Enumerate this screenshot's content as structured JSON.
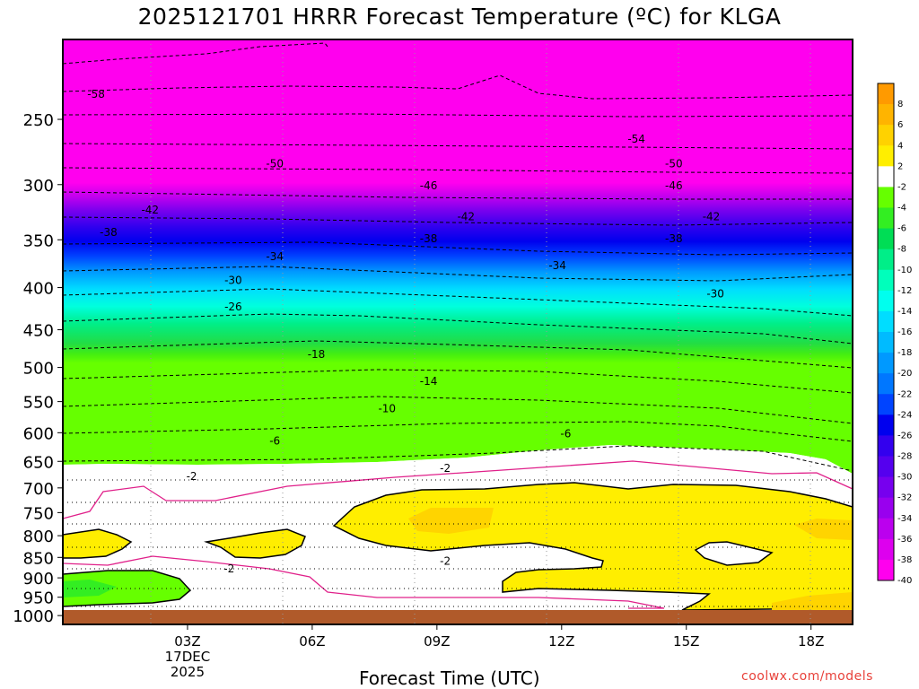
{
  "chart_data": {
    "type": "heatmap",
    "title": "2025121701 HRRR Forecast Temperature (ºC) for KLGA",
    "xlabel": "Forecast Time (UTC)",
    "ylabel": "",
    "x_ticks": [
      "03Z",
      "06Z",
      "09Z",
      "12Z",
      "15Z",
      "18Z"
    ],
    "x_tick_hours": [
      3,
      6,
      9,
      12,
      15,
      18
    ],
    "x_range_hours": [
      0,
      19
    ],
    "date_label": [
      "17DEC",
      "2025"
    ],
    "y_ticks": [
      250,
      300,
      350,
      400,
      450,
      500,
      550,
      600,
      650,
      700,
      750,
      800,
      850,
      900,
      950,
      1000
    ],
    "y_range_hPa": [
      1025,
      200
    ],
    "y_scale": "log-pressure",
    "grid": true,
    "colorbar_labels": [
      "8",
      "6",
      "4",
      "2",
      "-2",
      "-4",
      "-6",
      "-8",
      "-10",
      "-12",
      "-14",
      "-16",
      "-18",
      "-20",
      "-22",
      "-24",
      "-26",
      "-28",
      "-30",
      "-32",
      "-34",
      "-36",
      "-38",
      "-40"
    ],
    "colorbar_colors": [
      "#ff9a00",
      "#ffb400",
      "#ffd200",
      "#ffee00",
      "#ffffff",
      "#66ff00",
      "#33ee22",
      "#00dd55",
      "#00ee88",
      "#00ffbb",
      "#00ffee",
      "#00ddff",
      "#00bbff",
      "#0099ff",
      "#0077ff",
      "#0044ff",
      "#0000ee",
      "#3300ee",
      "#5500ee",
      "#7700ee",
      "#9900ee",
      "#bb00ee",
      "#dd00ee",
      "#ff00ee"
    ],
    "contour_labels": [
      {
        "text": "-58",
        "hour": 0.8,
        "p": 233
      },
      {
        "text": "-54",
        "hour": 13.8,
        "p": 264
      },
      {
        "text": "-50",
        "hour": 5.1,
        "p": 283
      },
      {
        "text": "-50",
        "hour": 14.7,
        "p": 283
      },
      {
        "text": "-46",
        "hour": 8.8,
        "p": 301
      },
      {
        "text": "-46",
        "hour": 14.7,
        "p": 301
      },
      {
        "text": "-42",
        "hour": 2.1,
        "p": 322
      },
      {
        "text": "-42",
        "hour": 9.7,
        "p": 328
      },
      {
        "text": "-42",
        "hour": 15.6,
        "p": 328
      },
      {
        "text": "-38",
        "hour": 1.1,
        "p": 343
      },
      {
        "text": "-38",
        "hour": 8.8,
        "p": 349
      },
      {
        "text": "-38",
        "hour": 14.7,
        "p": 349
      },
      {
        "text": "-34",
        "hour": 5.1,
        "p": 367
      },
      {
        "text": "-34",
        "hour": 11.9,
        "p": 376
      },
      {
        "text": "-30",
        "hour": 4.1,
        "p": 392
      },
      {
        "text": "-30",
        "hour": 15.7,
        "p": 407
      },
      {
        "text": "-26",
        "hour": 4.1,
        "p": 422
      },
      {
        "text": "-18",
        "hour": 6.1,
        "p": 482
      },
      {
        "text": "-14",
        "hour": 8.8,
        "p": 520
      },
      {
        "text": "-10",
        "hour": 7.8,
        "p": 561
      },
      {
        "text": "-6",
        "hour": 5.1,
        "p": 614
      },
      {
        "text": "-6",
        "hour": 12.1,
        "p": 602
      },
      {
        "text": "-2",
        "hour": 3.1,
        "p": 678
      },
      {
        "text": "-2",
        "hour": 9.2,
        "p": 663
      },
      {
        "text": "-2",
        "hour": 9.2,
        "p": 859
      },
      {
        "text": "-2",
        "hour": 4.0,
        "p": 878
      }
    ],
    "credit": "coolwx.com/models"
  }
}
